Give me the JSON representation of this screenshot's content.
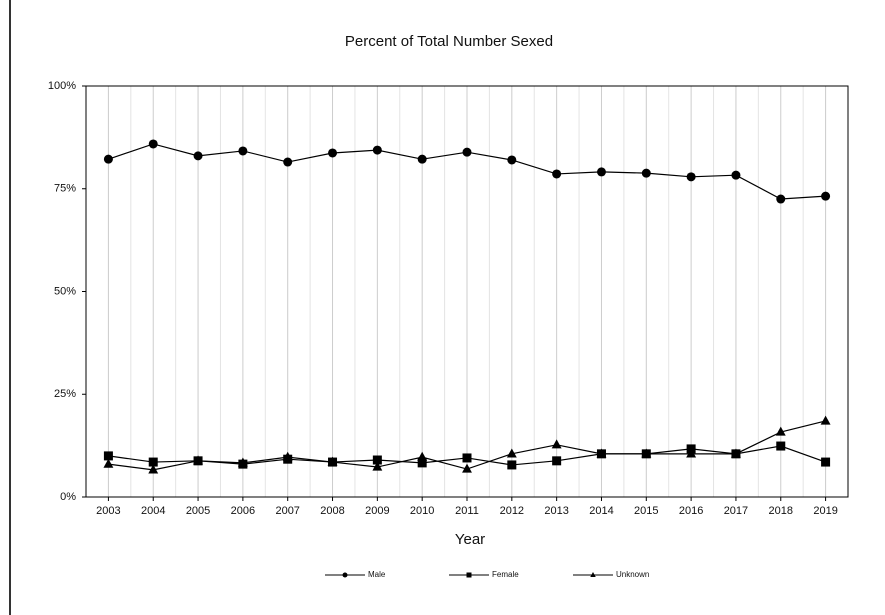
{
  "chart_data": {
    "type": "line",
    "title": "Percent of Total Number Sexed",
    "x_label": "Year",
    "categories": [
      "2003",
      "2004",
      "2005",
      "2006",
      "2007",
      "2008",
      "2009",
      "2010",
      "2011",
      "2012",
      "2013",
      "2014",
      "2015",
      "2016",
      "2017",
      "2018",
      "2019"
    ],
    "series": [
      {
        "name": "Male",
        "color": "#000000",
        "marker": "circle",
        "values": [
          82.2,
          85.9,
          83,
          84.2,
          81.5,
          83.7,
          84.4,
          82.2,
          83.9,
          82,
          78.6,
          79.1,
          78.8,
          77.9,
          78.3,
          72.5,
          73.2
        ]
      },
      {
        "name": "Female",
        "color": "#000000",
        "marker": "square",
        "values": [
          10,
          8.5,
          8.8,
          8,
          9.2,
          8.5,
          9,
          8.3,
          9.5,
          7.8,
          8.8,
          10.5,
          10.5,
          11.7,
          10.5,
          12.4,
          8.5
        ]
      },
      {
        "name": "Unknown",
        "color": "#000000",
        "marker": "triangle",
        "values": [
          8,
          6.6,
          8.8,
          8.3,
          9.7,
          8.5,
          7.3,
          9.7,
          6.8,
          10.5,
          12.7,
          10.5,
          10.5,
          10.5,
          10.5,
          15.8,
          18.5
        ]
      }
    ],
    "ylim": [
      0,
      100
    ],
    "yticks": [
      {
        "value": 0,
        "label": "0%"
      },
      {
        "value": 25,
        "label": "25%"
      },
      {
        "value": 50,
        "label": "50%"
      },
      {
        "value": 75,
        "label": "75%"
      },
      {
        "value": 100,
        "label": "100%"
      }
    ],
    "grid": true,
    "legend": "bottom"
  }
}
